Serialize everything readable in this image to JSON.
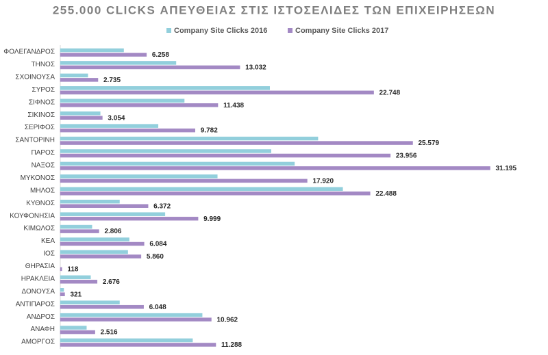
{
  "chart_data": {
    "type": "hbar",
    "title": "255.000 CLICKS ΑΠΕΥΘΕΙΑΣ ΣΤΙΣ ΙΣΤΟΣΕΛΙΔΕΣ ΤΩΝ ΕΠΙΧΕΙΡΗΣΕΩΝ",
    "categories": [
      "ΦΟΛΕΓΑΝΔΡΟΣ",
      "ΤΗΝΟΣ",
      "ΣΧΟΙΝΟΥΣΑ",
      "ΣΥΡΟΣ",
      "ΣΙΦΝΟΣ",
      "ΣΙΚΙΝΟΣ",
      "ΣΕΡΙΦΟΣ",
      "ΣΑΝΤΟΡΙΝΗ",
      "ΠΑΡΟΣ",
      "ΝΑΞΟΣ",
      "ΜΥΚΟΝΟΣ",
      "ΜΗΛΟΣ",
      "ΚΥΘΝΟΣ",
      "ΚΟΥΦΟΝΗΣΙΑ",
      "ΚΙΜΩΛΟΣ",
      "ΚΕΑ",
      "ΙΟΣ",
      "ΘΗΡΑΣΙΑ",
      "ΗΡΑΚΛΕΙΑ",
      "ΔΟΝΟΥΣΑ",
      "ΑΝΤΙΠΑΡΟΣ",
      "ΑΝΔΡΟΣ",
      "ΑΝΑΦΗ",
      "ΑΜΟΡΓΟΣ"
    ],
    "series": [
      {
        "name": "Company Site Clicks 2016",
        "color": "#92cfdc",
        "values": [
          4600,
          8400,
          2000,
          15200,
          9000,
          2900,
          7100,
          18700,
          15300,
          17000,
          11400,
          20500,
          4300,
          7600,
          2300,
          5000,
          4900,
          0,
          2200,
          250,
          4300,
          10300,
          1900,
          9600
        ]
      },
      {
        "name": "Company Site Clicks 2017",
        "color": "#a389c4",
        "values": [
          6258,
          13032,
          2735,
          22748,
          11438,
          3054,
          9782,
          25579,
          23956,
          31195,
          17920,
          22488,
          6372,
          9999,
          2806,
          6084,
          5860,
          118,
          2676,
          321,
          6048,
          10962,
          2516,
          11288
        ],
        "value_labels": [
          "6.258",
          "13.032",
          "2.735",
          "22.748",
          "11.438",
          "3.054",
          "9.782",
          "25.579",
          "23.956",
          "31.195",
          "17.920",
          "22.488",
          "6.372",
          "9.999",
          "2.806",
          "6.084",
          "5.860",
          "118",
          "2.676",
          "321",
          "6.048",
          "10.962",
          "2.516",
          "11.288"
        ]
      }
    ],
    "xlim": [
      0,
      35000
    ]
  }
}
